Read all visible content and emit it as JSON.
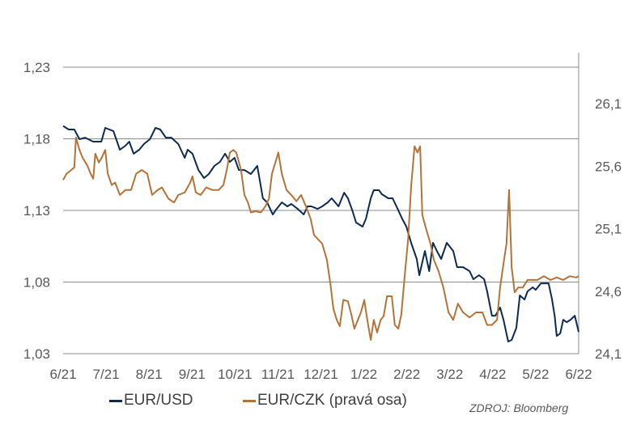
{
  "chart_data": {
    "type": "line",
    "title": "",
    "xlabel": "",
    "ylabel": "",
    "x_unit": "months since 6/21",
    "x_ticks": [
      "6/21",
      "7/21",
      "8/21",
      "9/21",
      "10/21",
      "11/21",
      "12/21",
      "1/22",
      "2/22",
      "3/22",
      "4/22",
      "5/22",
      "6/22"
    ],
    "xlim": [
      0,
      12
    ],
    "y_left": {
      "ticks": [
        "1,23",
        "1,18",
        "1,13",
        "1,08",
        "1,03"
      ],
      "tick_values": [
        1.23,
        1.18,
        1.13,
        1.08,
        1.03
      ],
      "lim": [
        1.03,
        1.24
      ]
    },
    "y_right": {
      "ticks": [
        "26,1",
        "25,6",
        "25,1",
        "24,6",
        "24,1"
      ],
      "tick_values": [
        26.1,
        25.6,
        25.1,
        24.6,
        24.1
      ],
      "lim": [
        24.1,
        26.5
      ]
    },
    "grid": true,
    "legend_position": "bottom",
    "source": "ZDROJ: Bloomberg",
    "series": [
      {
        "name": "EUR/USD",
        "axis": "left",
        "color": "#0e2a52",
        "points": [
          [
            0,
            1.189
          ],
          [
            0.13,
            1.1865
          ],
          [
            0.26,
            1.1865
          ],
          [
            0.38,
            1.1797
          ],
          [
            0.51,
            1.1808
          ],
          [
            0.7,
            1.178
          ],
          [
            0.89,
            1.178
          ],
          [
            0.98,
            1.1876
          ],
          [
            1.17,
            1.1854
          ],
          [
            1.32,
            1.1724
          ],
          [
            1.45,
            1.1752
          ],
          [
            1.54,
            1.178
          ],
          [
            1.64,
            1.1696
          ],
          [
            1.77,
            1.1724
          ],
          [
            1.88,
            1.1763
          ],
          [
            2.02,
            1.1797
          ],
          [
            2.15,
            1.1876
          ],
          [
            2.26,
            1.1865
          ],
          [
            2.39,
            1.1808
          ],
          [
            2.52,
            1.1808
          ],
          [
            2.68,
            1.1763
          ],
          [
            2.83,
            1.1667
          ],
          [
            2.9,
            1.1724
          ],
          [
            3.01,
            1.1696
          ],
          [
            3.15,
            1.1582
          ],
          [
            3.28,
            1.1526
          ],
          [
            3.39,
            1.1554
          ],
          [
            3.52,
            1.1611
          ],
          [
            3.65,
            1.1639
          ],
          [
            3.77,
            1.1696
          ],
          [
            3.88,
            1.1639
          ],
          [
            3.99,
            1.1667
          ],
          [
            4.09,
            1.1582
          ],
          [
            4.22,
            1.1582
          ],
          [
            4.37,
            1.1554
          ],
          [
            4.52,
            1.1611
          ],
          [
            4.65,
            1.1385
          ],
          [
            4.75,
            1.1356
          ],
          [
            4.88,
            1.1272
          ],
          [
            4.97,
            1.1311
          ],
          [
            5.09,
            1.1356
          ],
          [
            5.22,
            1.1328
          ],
          [
            5.31,
            1.1345
          ],
          [
            5.46,
            1.1311
          ],
          [
            5.6,
            1.1272
          ],
          [
            5.69,
            1.1328
          ],
          [
            5.78,
            1.1328
          ],
          [
            5.92,
            1.1311
          ],
          [
            6.03,
            1.1328
          ],
          [
            6.16,
            1.1356
          ],
          [
            6.25,
            1.1385
          ],
          [
            6.41,
            1.1328
          ],
          [
            6.54,
            1.1424
          ],
          [
            6.63,
            1.1385
          ],
          [
            6.73,
            1.13
          ],
          [
            6.82,
            1.1215
          ],
          [
            6.97,
            1.1187
          ],
          [
            7.05,
            1.1243
          ],
          [
            7.16,
            1.1385
          ],
          [
            7.23,
            1.1441
          ],
          [
            7.35,
            1.1441
          ],
          [
            7.42,
            1.1413
          ],
          [
            7.57,
            1.1385
          ],
          [
            7.67,
            1.1385
          ],
          [
            7.76,
            1.1328
          ],
          [
            7.89,
            1.1243
          ],
          [
            7.99,
            1.1187
          ],
          [
            8.1,
            1.1074
          ],
          [
            8.23,
            1.0961
          ],
          [
            8.29,
            1.0848
          ],
          [
            8.42,
            1.1017
          ],
          [
            8.52,
            1.0876
          ],
          [
            8.61,
            1.1074
          ],
          [
            8.7,
            1.1017
          ],
          [
            8.8,
            1.0961
          ],
          [
            8.93,
            1.1074
          ],
          [
            9.08,
            1.1017
          ],
          [
            9.17,
            1.0904
          ],
          [
            9.31,
            1.0904
          ],
          [
            9.46,
            1.0876
          ],
          [
            9.55,
            1.082
          ],
          [
            9.68,
            1.0848
          ],
          [
            9.8,
            1.082
          ],
          [
            9.87,
            1.0735
          ],
          [
            9.98,
            1.0565
          ],
          [
            10.06,
            1.0565
          ],
          [
            10.17,
            1.0622
          ],
          [
            10.25,
            1.0537
          ],
          [
            10.36,
            1.0385
          ],
          [
            10.44,
            1.0396
          ],
          [
            10.55,
            1.0481
          ],
          [
            10.63,
            1.0707
          ],
          [
            10.74,
            1.0678
          ],
          [
            10.81,
            1.0735
          ],
          [
            10.93,
            1.0763
          ],
          [
            11.0,
            1.0746
          ],
          [
            11.12,
            1.0791
          ],
          [
            11.19,
            1.0791
          ],
          [
            11.3,
            1.0791
          ],
          [
            11.38,
            1.0678
          ],
          [
            11.44,
            1.0565
          ],
          [
            11.49,
            1.0424
          ],
          [
            11.57,
            1.0441
          ],
          [
            11.64,
            1.0537
          ],
          [
            11.72,
            1.052
          ],
          [
            11.81,
            1.0537
          ],
          [
            11.91,
            1.0565
          ],
          [
            12.0,
            1.0452
          ]
        ]
      },
      {
        "name": "EUR/CZK (pravá osa)",
        "axis": "right",
        "color": "#b5733a",
        "points": [
          [
            0,
            25.49
          ],
          [
            0.08,
            25.54
          ],
          [
            0.19,
            25.57
          ],
          [
            0.26,
            25.59
          ],
          [
            0.3,
            25.83
          ],
          [
            0.38,
            25.73
          ],
          [
            0.45,
            25.67
          ],
          [
            0.57,
            25.6
          ],
          [
            0.64,
            25.54
          ],
          [
            0.7,
            25.5
          ],
          [
            0.75,
            25.7
          ],
          [
            0.83,
            25.63
          ],
          [
            0.9,
            25.67
          ],
          [
            0.98,
            25.73
          ],
          [
            1.04,
            25.54
          ],
          [
            1.13,
            25.45
          ],
          [
            1.21,
            25.47
          ],
          [
            1.32,
            25.37
          ],
          [
            1.45,
            25.41
          ],
          [
            1.58,
            25.41
          ],
          [
            1.7,
            25.54
          ],
          [
            1.83,
            25.57
          ],
          [
            1.96,
            25.54
          ],
          [
            2.07,
            25.37
          ],
          [
            2.2,
            25.41
          ],
          [
            2.3,
            25.43
          ],
          [
            2.45,
            25.34
          ],
          [
            2.58,
            25.31
          ],
          [
            2.68,
            25.37
          ],
          [
            2.83,
            25.39
          ],
          [
            2.96,
            25.47
          ],
          [
            3.01,
            25.52
          ],
          [
            3.09,
            25.39
          ],
          [
            3.2,
            25.37
          ],
          [
            3.33,
            25.43
          ],
          [
            3.47,
            25.41
          ],
          [
            3.62,
            25.41
          ],
          [
            3.73,
            25.45
          ],
          [
            3.81,
            25.57
          ],
          [
            3.88,
            25.71
          ],
          [
            3.96,
            25.73
          ],
          [
            4.03,
            25.71
          ],
          [
            4.14,
            25.57
          ],
          [
            4.22,
            25.37
          ],
          [
            4.3,
            25.31
          ],
          [
            4.37,
            25.23
          ],
          [
            4.48,
            25.24
          ],
          [
            4.6,
            25.23
          ],
          [
            4.71,
            25.28
          ],
          [
            4.79,
            25.34
          ],
          [
            4.86,
            25.54
          ],
          [
            4.94,
            25.63
          ],
          [
            5.01,
            25.71
          ],
          [
            5.09,
            25.54
          ],
          [
            5.2,
            25.41
          ],
          [
            5.31,
            25.37
          ],
          [
            5.43,
            25.32
          ],
          [
            5.54,
            25.37
          ],
          [
            5.65,
            25.28
          ],
          [
            5.76,
            25.18
          ],
          [
            5.84,
            25.05
          ],
          [
            5.92,
            25.02
          ],
          [
            6.03,
            24.98
          ],
          [
            6.14,
            24.85
          ],
          [
            6.22,
            24.66
          ],
          [
            6.29,
            24.46
          ],
          [
            6.37,
            24.37
          ],
          [
            6.44,
            24.32
          ],
          [
            6.52,
            24.53
          ],
          [
            6.63,
            24.52
          ],
          [
            6.71,
            24.41
          ],
          [
            6.78,
            24.3
          ],
          [
            6.86,
            24.37
          ],
          [
            6.93,
            24.43
          ],
          [
            7.01,
            24.53
          ],
          [
            7.08,
            24.37
          ],
          [
            7.16,
            24.21
          ],
          [
            7.23,
            24.37
          ],
          [
            7.31,
            24.27
          ],
          [
            7.39,
            24.37
          ],
          [
            7.46,
            24.4
          ],
          [
            7.54,
            24.56
          ],
          [
            7.65,
            24.56
          ],
          [
            7.72,
            24.33
          ],
          [
            7.8,
            24.3
          ],
          [
            7.87,
            24.41
          ],
          [
            7.95,
            24.72
          ],
          [
            8.03,
            25.02
          ],
          [
            8.1,
            25.44
          ],
          [
            8.18,
            25.76
          ],
          [
            8.25,
            25.71
          ],
          [
            8.31,
            25.76
          ],
          [
            8.36,
            25.21
          ],
          [
            8.44,
            25.11
          ],
          [
            8.55,
            24.98
          ],
          [
            8.63,
            24.85
          ],
          [
            8.74,
            24.76
          ],
          [
            8.85,
            24.63
          ],
          [
            8.97,
            24.43
          ],
          [
            9.08,
            24.37
          ],
          [
            9.19,
            24.5
          ],
          [
            9.31,
            24.43
          ],
          [
            9.46,
            24.39
          ],
          [
            9.61,
            24.43
          ],
          [
            9.76,
            24.43
          ],
          [
            9.87,
            24.33
          ],
          [
            9.98,
            24.33
          ],
          [
            10.1,
            24.37
          ],
          [
            10.17,
            24.63
          ],
          [
            10.25,
            24.82
          ],
          [
            10.32,
            24.98
          ],
          [
            10.38,
            25.41
          ],
          [
            10.44,
            24.79
          ],
          [
            10.51,
            24.59
          ],
          [
            10.59,
            24.63
          ],
          [
            10.7,
            24.63
          ],
          [
            10.81,
            24.69
          ],
          [
            10.93,
            24.69
          ],
          [
            11.04,
            24.69
          ],
          [
            11.19,
            24.72
          ],
          [
            11.34,
            24.69
          ],
          [
            11.49,
            24.71
          ],
          [
            11.64,
            24.69
          ],
          [
            11.79,
            24.72
          ],
          [
            11.94,
            24.71
          ],
          [
            12.0,
            24.72
          ]
        ]
      }
    ]
  },
  "legend": {
    "items": [
      "EUR/USD",
      "EUR/CZK (pravá osa)"
    ]
  }
}
